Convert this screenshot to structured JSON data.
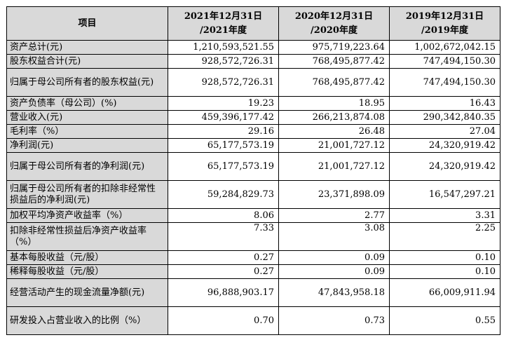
{
  "table": {
    "header": {
      "item": "项目",
      "col2021_line1": "2021年12月31日",
      "col2021_line2": "/2021年度",
      "col2020_line1": "2020年12月31日",
      "col2020_line2": "/2020年度",
      "col2019_line1": "2019年12月31日",
      "col2019_line2": "/2019年度"
    },
    "rows": [
      {
        "label": "资产总计(元)",
        "v2021": "1,210,593,521.55",
        "v2020": "975,719,223.64",
        "v2019": "1,002,672,042.15"
      },
      {
        "label": "股东权益合计(元)",
        "v2021": "928,572,726.31",
        "v2020": "768,495,877.42",
        "v2019": "747,494,150.30"
      },
      {
        "label": "归属于母公司所有者的股东权益(元)",
        "v2021": "928,572,726.31",
        "v2020": "768,495,877.42",
        "v2019": "747,494,150.30"
      },
      {
        "label": "资产负债率（母公司）(%)",
        "v2021": "19.23",
        "v2020": "18.95",
        "v2019": "16.43"
      },
      {
        "label": "营业收入(元)",
        "v2021": "459,396,177.42",
        "v2020": "266,213,874.08",
        "v2019": "290,342,840.35"
      },
      {
        "label": "毛利率（%）",
        "v2021": "29.16",
        "v2020": "26.48",
        "v2019": "27.04"
      },
      {
        "label": "净利润(元)",
        "v2021": "65,177,573.19",
        "v2020": "21,001,727.12",
        "v2019": "24,320,919.42"
      },
      {
        "label": "归属于母公司所有者的净利润(元)",
        "v2021": "65,177,573.19",
        "v2020": "21,001,727.12",
        "v2019": "24,320,919.42"
      },
      {
        "label": "归属于母公司所有者的扣除非经常性损益后的净利润(元)",
        "v2021": "59,284,829.73",
        "v2020": "23,371,898.09",
        "v2019": "16,547,297.21"
      },
      {
        "label": "加权平均净资产收益率（%）",
        "v2021": "8.06",
        "v2020": "2.77",
        "v2019": "3.31"
      },
      {
        "label": "扣除非经常性损益后净资产收益率（%）",
        "v2021": "7.33",
        "v2020": "3.08",
        "v2019": "2.25"
      },
      {
        "label": "基本每股收益（元/股）",
        "v2021": "0.27",
        "v2020": "0.09",
        "v2019": "0.10"
      },
      {
        "label": "稀释每股收益（元/股）",
        "v2021": "0.27",
        "v2020": "0.09",
        "v2019": "0.10"
      },
      {
        "label": "经营活动产生的现金流量净额(元)",
        "v2021": "96,888,903.17",
        "v2020": "47,843,958.18",
        "v2019": "66,009,911.94"
      },
      {
        "label": "研发投入占营业收入的比例（%）",
        "v2021": "0.70",
        "v2020": "0.73",
        "v2019": "0.55"
      }
    ]
  }
}
